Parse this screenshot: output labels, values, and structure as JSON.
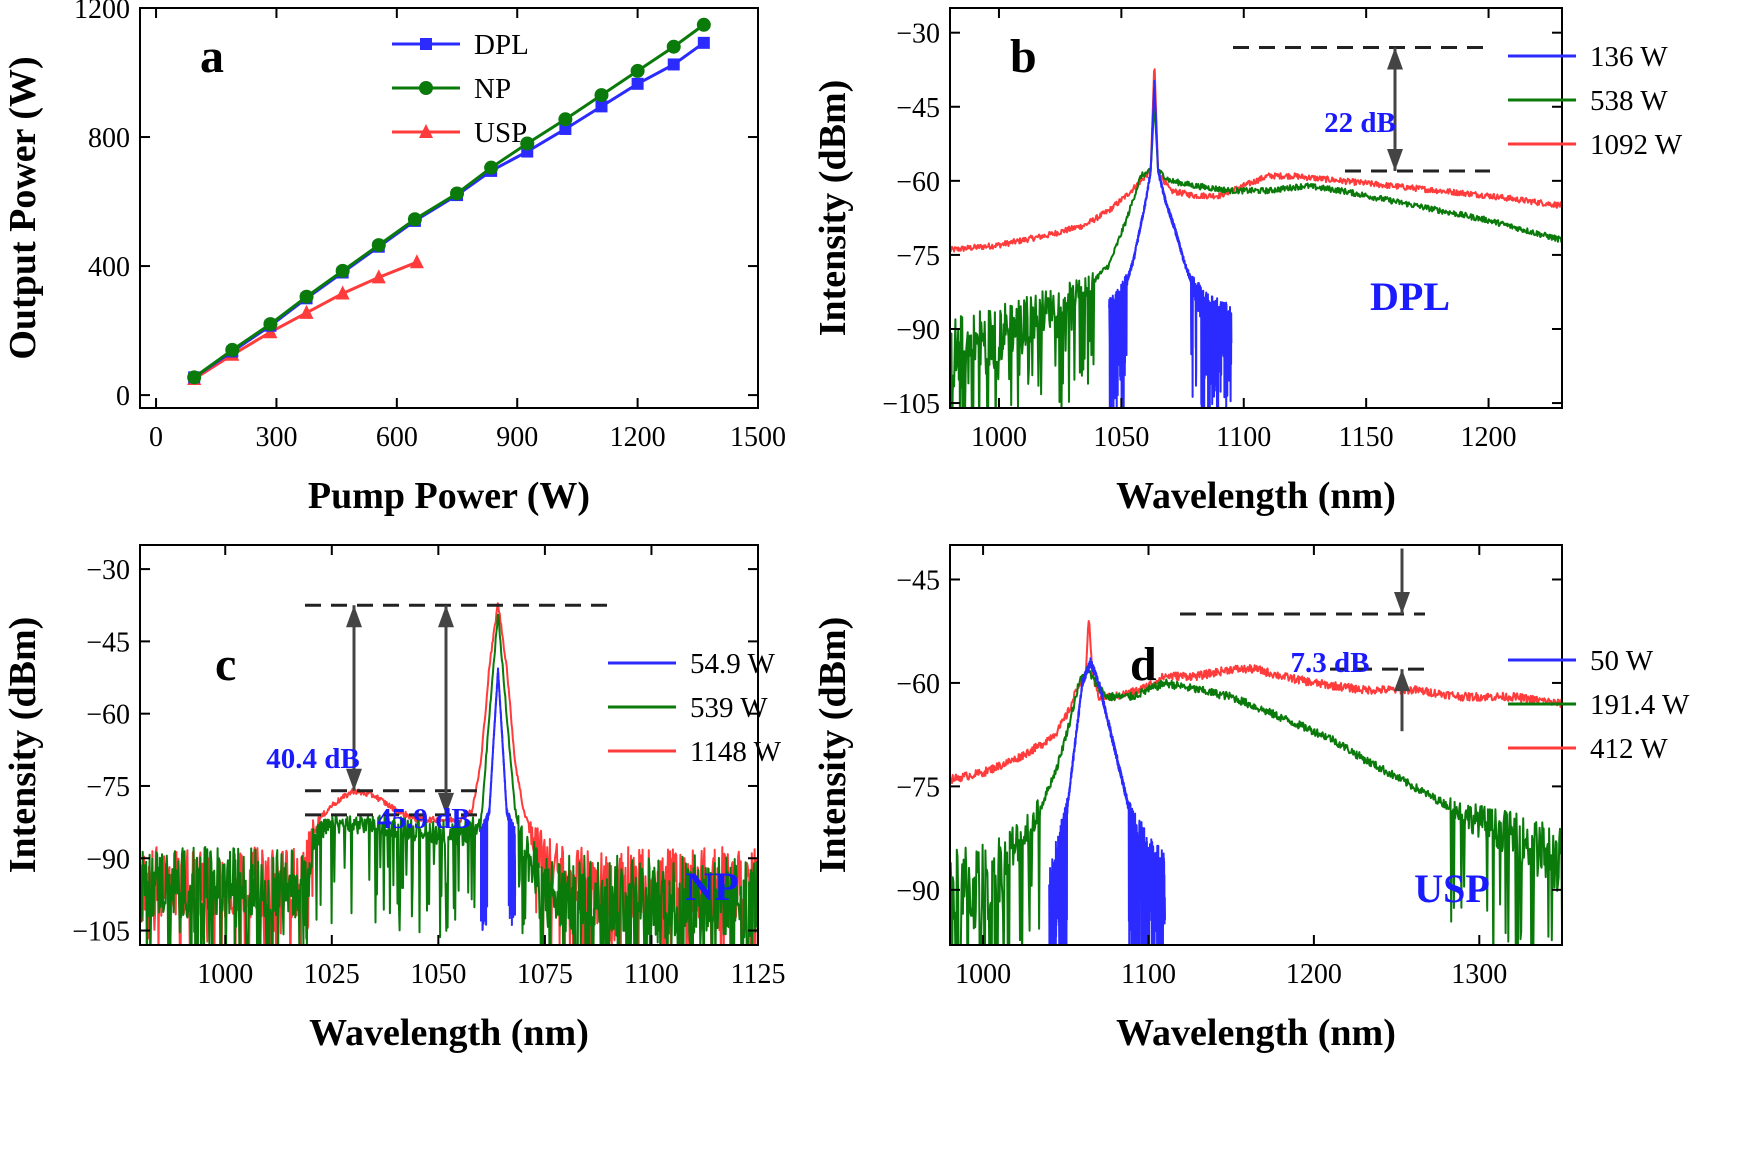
{
  "colors": {
    "blue": "#2b2bff",
    "green": "#0a7a0a",
    "red": "#ff3b3b",
    "ann": "#1a1aff"
  },
  "chart_data": [
    {
      "id": "a",
      "type": "line",
      "label": "a",
      "xlabel": "Pump Power (W)",
      "ylabel": "Output Power (W)",
      "xlim": [
        -40,
        1500
      ],
      "ylim": [
        -40,
        1200
      ],
      "xticks": [
        0,
        300,
        600,
        900,
        1200,
        1500
      ],
      "yticks": [
        0,
        400,
        800,
        1200
      ],
      "series": [
        {
          "name": "DPL",
          "marker": "square",
          "x": [
            95,
            190,
            285,
            375,
            465,
            555,
            645,
            750,
            835,
            925,
            1020,
            1110,
            1200,
            1290,
            1365
          ],
          "y": [
            55,
            135,
            215,
            300,
            380,
            460,
            540,
            620,
            695,
            755,
            825,
            895,
            965,
            1025,
            1092
          ]
        },
        {
          "name": "NP",
          "marker": "circle",
          "x": [
            95,
            190,
            285,
            375,
            465,
            555,
            645,
            750,
            835,
            925,
            1020,
            1110,
            1200,
            1290,
            1365
          ],
          "y": [
            55,
            140,
            220,
            305,
            385,
            465,
            545,
            625,
            705,
            780,
            855,
            930,
            1005,
            1080,
            1148
          ]
        },
        {
          "name": "USP",
          "marker": "triangle",
          "x": [
            95,
            190,
            285,
            375,
            465,
            555,
            650
          ],
          "y": [
            50,
            125,
            195,
            255,
            315,
            365,
            412
          ]
        }
      ]
    },
    {
      "id": "b",
      "type": "line",
      "label": "b",
      "xlabel": "Wavelength (nm)",
      "ylabel": "Intensity (dBm)",
      "xlim": [
        980,
        1230
      ],
      "ylim": [
        -106,
        -25
      ],
      "xticks": [
        1000,
        1050,
        1100,
        1150,
        1200
      ],
      "yticks": [
        -105,
        -90,
        -75,
        -60,
        -45,
        -30
      ],
      "series": [
        {
          "name": "136 W",
          "x": [
            1045,
            1050,
            1055,
            1060,
            1062,
            1063.5,
            1065,
            1068,
            1072,
            1076,
            1080,
            1085,
            1090,
            1095
          ],
          "y": [
            -90,
            -84,
            -76,
            -64,
            -58,
            -40,
            -58,
            -64,
            -70,
            -77,
            -82,
            -87,
            -90,
            -92
          ],
          "noise_floor": -98
        },
        {
          "name": "538 W",
          "x": [
            980,
            1000,
            1020,
            1035,
            1045,
            1052,
            1058,
            1062,
            1063.5,
            1065,
            1070,
            1080,
            1095,
            1110,
            1125,
            1140,
            1160,
            1180,
            1200,
            1215,
            1230
          ],
          "y": [
            -96,
            -91,
            -86,
            -82,
            -77,
            -68,
            -59,
            -58,
            -44,
            -58,
            -60,
            -61,
            -62,
            -62,
            -61,
            -62,
            -64,
            -66,
            -68,
            -70,
            -72
          ]
        },
        {
          "name": "1092 W",
          "x": [
            980,
            1000,
            1020,
            1035,
            1045,
            1052,
            1058,
            1062,
            1063.5,
            1065,
            1070,
            1080,
            1090,
            1100,
            1110,
            1120,
            1140,
            1160,
            1180,
            1200,
            1215,
            1230
          ],
          "y": [
            -74,
            -73,
            -71,
            -69,
            -66,
            -63,
            -60,
            -58,
            -36,
            -58,
            -62,
            -63,
            -63,
            -61,
            -59,
            -59,
            -60,
            -61,
            -62,
            -63,
            -64,
            -65
          ]
        }
      ],
      "annotations": [
        "22 dB",
        "DPL"
      ]
    },
    {
      "id": "c",
      "type": "line",
      "label": "c",
      "xlabel": "Wavelength (nm)",
      "ylabel": "Intensity (dBm)",
      "xlim": [
        980,
        1125
      ],
      "ylim": [
        -108,
        -25
      ],
      "xticks": [
        1000,
        1025,
        1050,
        1075,
        1100,
        1125
      ],
      "yticks": [
        -105,
        -90,
        -75,
        -60,
        -45,
        -30
      ],
      "series": [
        {
          "name": "54.9 W",
          "x": [
            1060,
            1062,
            1063,
            1064,
            1065,
            1066,
            1068
          ],
          "y": [
            -88,
            -80,
            -65,
            -51,
            -65,
            -80,
            -88
          ],
          "noise_floor": -95
        },
        {
          "name": "539 W",
          "x": [
            1018,
            1021,
            1025,
            1035,
            1045,
            1055,
            1060,
            1062,
            1064,
            1066,
            1068,
            1071,
            1075
          ],
          "y": [
            -95,
            -86,
            -83,
            -83,
            -84,
            -85,
            -83,
            -60,
            -39,
            -60,
            -80,
            -90,
            -98
          ]
        },
        {
          "name": "1148 W",
          "x": [
            1018,
            1021,
            1025,
            1030,
            1035,
            1040,
            1045,
            1050,
            1055,
            1058,
            1060,
            1062,
            1064,
            1066,
            1068,
            1070,
            1072,
            1075,
            1080
          ],
          "y": [
            -95,
            -83,
            -79,
            -76,
            -77,
            -80,
            -82,
            -82,
            -82,
            -80,
            -70,
            -50,
            -37,
            -50,
            -70,
            -80,
            -85,
            -90,
            -95
          ]
        }
      ],
      "annotations": [
        "40.4 dB",
        "45.9 dB",
        "NP"
      ]
    },
    {
      "id": "d",
      "type": "line",
      "label": "d",
      "xlabel": "Wavelength (nm)",
      "ylabel": "Intensity (dBm)",
      "xlim": [
        980,
        1350
      ],
      "ylim": [
        -98,
        -40
      ],
      "xticks": [
        1000,
        1100,
        1200,
        1300
      ],
      "yticks": [
        -90,
        -75,
        -60,
        -45
      ],
      "series": [
        {
          "name": "50 W",
          "x": [
            1040,
            1045,
            1050,
            1055,
            1060,
            1065,
            1070,
            1075,
            1080,
            1085,
            1090,
            1095,
            1100,
            1105,
            1110
          ],
          "y": [
            -95,
            -88,
            -80,
            -70,
            -60,
            -57,
            -60,
            -65,
            -70,
            -75,
            -80,
            -84,
            -88,
            -90,
            -92
          ],
          "noise_floor": -96
        },
        {
          "name": "191.4 W",
          "x": [
            980,
            1000,
            1020,
            1035,
            1045,
            1052,
            1058,
            1063,
            1068,
            1075,
            1090,
            1110,
            1130,
            1150,
            1170,
            1190,
            1210,
            1230,
            1260,
            1290,
            1320,
            1350
          ],
          "y": [
            -92,
            -89,
            -84,
            -78,
            -72,
            -66,
            -60,
            -58,
            -60,
            -62,
            -62,
            -60,
            -61,
            -62,
            -64,
            -66,
            -68,
            -71,
            -75,
            -79,
            -82,
            -86
          ]
        },
        {
          "name": "412 W",
          "x": [
            980,
            1000,
            1020,
            1035,
            1045,
            1052,
            1058,
            1062,
            1064,
            1066,
            1070,
            1080,
            1095,
            1110,
            1130,
            1150,
            1165,
            1180,
            1200,
            1230,
            1260,
            1290,
            1320,
            1350
          ],
          "y": [
            -74,
            -73,
            -71,
            -69,
            -67,
            -64,
            -60,
            -59,
            -50,
            -59,
            -62,
            -62,
            -61,
            -59,
            -59,
            -58,
            -58,
            -59,
            -60,
            -61,
            -61,
            -62,
            -62,
            -63
          ]
        }
      ],
      "annotations": [
        "7.3 dB",
        "USP"
      ]
    }
  ]
}
